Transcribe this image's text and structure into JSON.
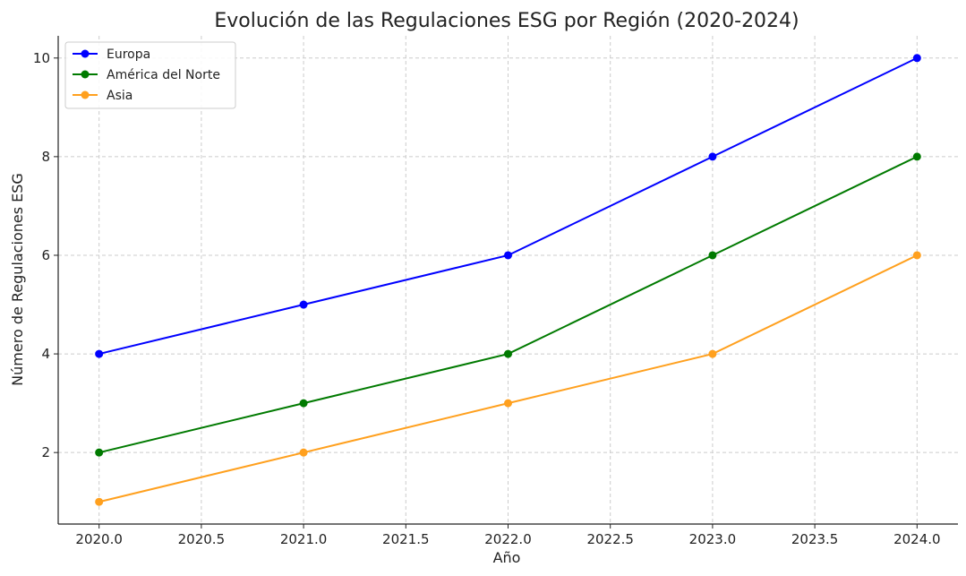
{
  "chart_data": {
    "type": "line",
    "title": "Evolución de las Regulaciones ESG por Región (2020-2024)",
    "xlabel": "Año",
    "ylabel": "Número de Regulaciones ESG",
    "x": [
      2020,
      2021,
      2022,
      2023,
      2024
    ],
    "x_ticks": [
      "2020.0",
      "2020.5",
      "2021.0",
      "2021.5",
      "2022.0",
      "2022.5",
      "2023.0",
      "2023.5",
      "2024.0"
    ],
    "y_ticks": [
      "2",
      "4",
      "6",
      "8",
      "10"
    ],
    "xlim": [
      2019.8,
      2024.2
    ],
    "ylim": [
      0.55,
      10.45
    ],
    "grid": true,
    "legend_position": "top-left",
    "series": [
      {
        "name": "Europa",
        "color": "#0000ff",
        "values": [
          4,
          5,
          6,
          8,
          10
        ]
      },
      {
        "name": "América del Norte",
        "color": "#007a00",
        "values": [
          2,
          3,
          4,
          6,
          8
        ]
      },
      {
        "name": "Asia",
        "color": "#ffa01e",
        "values": [
          1,
          2,
          3,
          4,
          6
        ]
      }
    ]
  }
}
